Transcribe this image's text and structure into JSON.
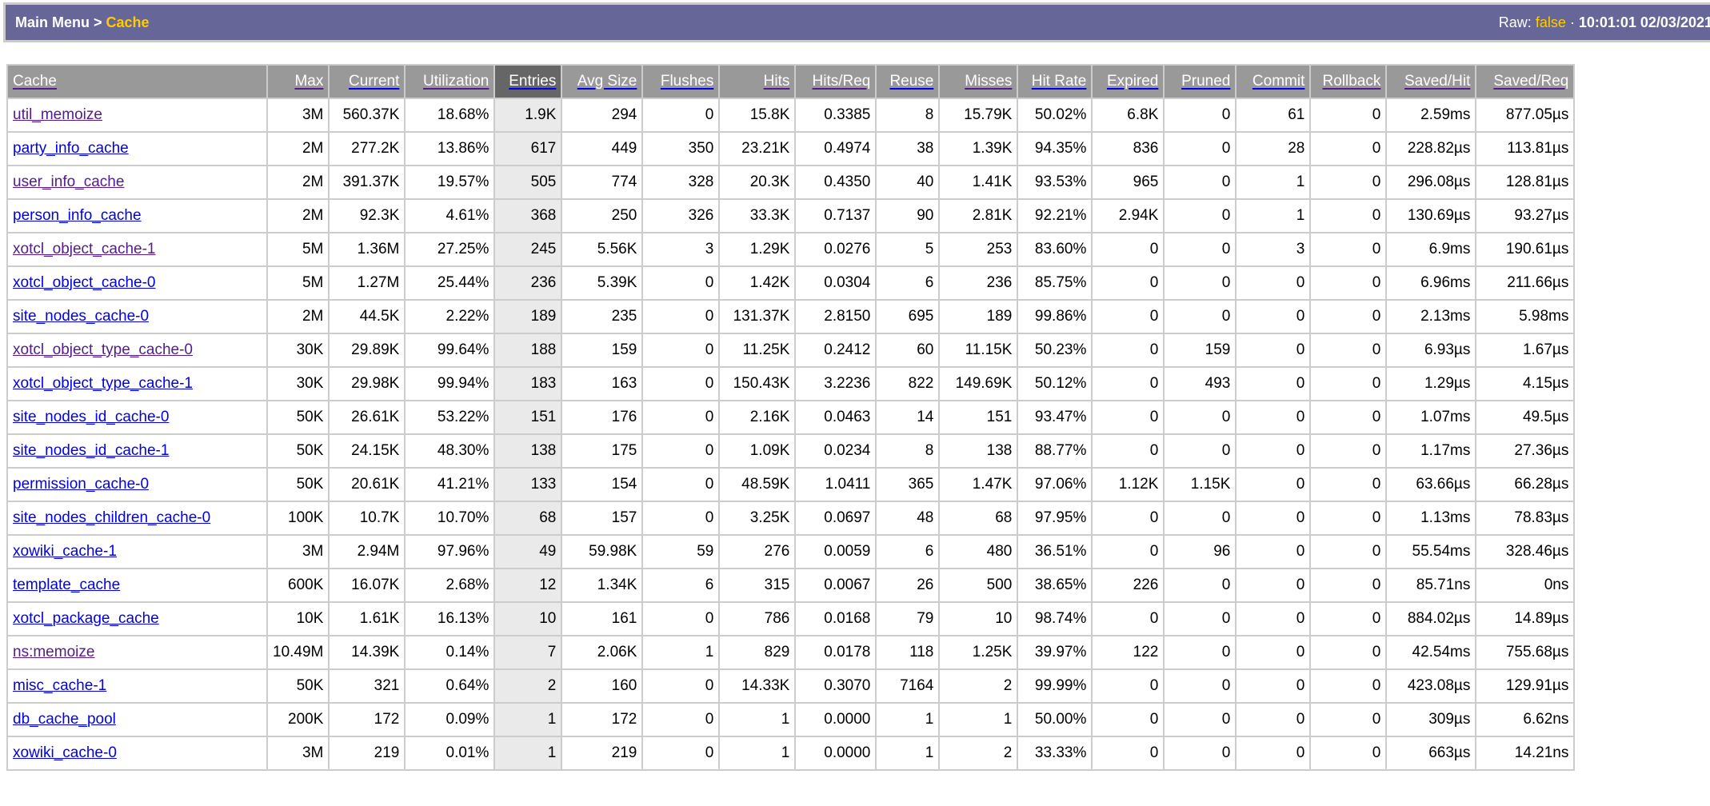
{
  "header": {
    "breadcrumb_root": "Main Menu",
    "breadcrumb_separator": ">",
    "breadcrumb_current": "Cache",
    "raw_label": "Raw:",
    "raw_value": "false",
    "separator": "·",
    "timestamp": "10:01:01 02/03/2021"
  },
  "colors": {
    "header_bar": "#666699",
    "highlight": "#ffcc00",
    "link": "#0000ee",
    "visited_link": "#551a8b",
    "table_header": "#999999",
    "sorted_header": "#666666",
    "sorted_cell": "#eaeaea"
  },
  "table": {
    "sorted_column": "Entries",
    "columns": [
      {
        "label": "Cache",
        "visited": true
      },
      {
        "label": "Max",
        "visited": true
      },
      {
        "label": "Current",
        "visited": false
      },
      {
        "label": "Utilization",
        "visited": true
      },
      {
        "label": "Entries",
        "visited": false
      },
      {
        "label": "Avg Size",
        "visited": false
      },
      {
        "label": "Flushes",
        "visited": false
      },
      {
        "label": "Hits",
        "visited": true
      },
      {
        "label": "Hits/Req",
        "visited": true
      },
      {
        "label": "Reuse",
        "visited": false
      },
      {
        "label": "Misses",
        "visited": true
      },
      {
        "label": "Hit Rate",
        "visited": false
      },
      {
        "label": "Expired",
        "visited": false
      },
      {
        "label": "Pruned",
        "visited": false
      },
      {
        "label": "Commit",
        "visited": false
      },
      {
        "label": "Rollback",
        "visited": true
      },
      {
        "label": "Saved/Hit",
        "visited": true
      },
      {
        "label": "Saved/Req",
        "visited": true
      }
    ],
    "rows": [
      {
        "visited": true,
        "cells": [
          "util_memoize",
          "3M",
          "560.37K",
          "18.68%",
          "1.9K",
          "294",
          "0",
          "15.8K",
          "0.3385",
          "8",
          "15.79K",
          "50.02%",
          "6.8K",
          "0",
          "61",
          "0",
          "2.59ms",
          "877.05µs"
        ]
      },
      {
        "visited": false,
        "cells": [
          "party_info_cache",
          "2M",
          "277.2K",
          "13.86%",
          "617",
          "449",
          "350",
          "23.21K",
          "0.4974",
          "38",
          "1.39K",
          "94.35%",
          "836",
          "0",
          "28",
          "0",
          "228.82µs",
          "113.81µs"
        ]
      },
      {
        "visited": true,
        "cells": [
          "user_info_cache",
          "2M",
          "391.37K",
          "19.57%",
          "505",
          "774",
          "328",
          "20.3K",
          "0.4350",
          "40",
          "1.41K",
          "93.53%",
          "965",
          "0",
          "1",
          "0",
          "296.08µs",
          "128.81µs"
        ]
      },
      {
        "visited": false,
        "cells": [
          "person_info_cache",
          "2M",
          "92.3K",
          "4.61%",
          "368",
          "250",
          "326",
          "33.3K",
          "0.7137",
          "90",
          "2.81K",
          "92.21%",
          "2.94K",
          "0",
          "1",
          "0",
          "130.69µs",
          "93.27µs"
        ]
      },
      {
        "visited": true,
        "cells": [
          "xotcl_object_cache-1",
          "5M",
          "1.36M",
          "27.25%",
          "245",
          "5.56K",
          "3",
          "1.29K",
          "0.0276",
          "5",
          "253",
          "83.60%",
          "0",
          "0",
          "3",
          "0",
          "6.9ms",
          "190.61µs"
        ]
      },
      {
        "visited": false,
        "cells": [
          "xotcl_object_cache-0",
          "5M",
          "1.27M",
          "25.44%",
          "236",
          "5.39K",
          "0",
          "1.42K",
          "0.0304",
          "6",
          "236",
          "85.75%",
          "0",
          "0",
          "0",
          "0",
          "6.96ms",
          "211.66µs"
        ]
      },
      {
        "visited": false,
        "cells": [
          "site_nodes_cache-0",
          "2M",
          "44.5K",
          "2.22%",
          "189",
          "235",
          "0",
          "131.37K",
          "2.8150",
          "695",
          "189",
          "99.86%",
          "0",
          "0",
          "0",
          "0",
          "2.13ms",
          "5.98ms"
        ]
      },
      {
        "visited": true,
        "cells": [
          "xotcl_object_type_cache-0",
          "30K",
          "29.89K",
          "99.64%",
          "188",
          "159",
          "0",
          "11.25K",
          "0.2412",
          "60",
          "11.15K",
          "50.23%",
          "0",
          "159",
          "0",
          "0",
          "6.93µs",
          "1.67µs"
        ]
      },
      {
        "visited": false,
        "cells": [
          "xotcl_object_type_cache-1",
          "30K",
          "29.98K",
          "99.94%",
          "183",
          "163",
          "0",
          "150.43K",
          "3.2236",
          "822",
          "149.69K",
          "50.12%",
          "0",
          "493",
          "0",
          "0",
          "1.29µs",
          "4.15µs"
        ]
      },
      {
        "visited": false,
        "cells": [
          "site_nodes_id_cache-0",
          "50K",
          "26.61K",
          "53.22%",
          "151",
          "176",
          "0",
          "2.16K",
          "0.0463",
          "14",
          "151",
          "93.47%",
          "0",
          "0",
          "0",
          "0",
          "1.07ms",
          "49.5µs"
        ]
      },
      {
        "visited": false,
        "cells": [
          "site_nodes_id_cache-1",
          "50K",
          "24.15K",
          "48.30%",
          "138",
          "175",
          "0",
          "1.09K",
          "0.0234",
          "8",
          "138",
          "88.77%",
          "0",
          "0",
          "0",
          "0",
          "1.17ms",
          "27.36µs"
        ]
      },
      {
        "visited": false,
        "cells": [
          "permission_cache-0",
          "50K",
          "20.61K",
          "41.21%",
          "133",
          "154",
          "0",
          "48.59K",
          "1.0411",
          "365",
          "1.47K",
          "97.06%",
          "1.12K",
          "1.15K",
          "0",
          "0",
          "63.66µs",
          "66.28µs"
        ]
      },
      {
        "visited": false,
        "cells": [
          "site_nodes_children_cache-0",
          "100K",
          "10.7K",
          "10.70%",
          "68",
          "157",
          "0",
          "3.25K",
          "0.0697",
          "48",
          "68",
          "97.95%",
          "0",
          "0",
          "0",
          "0",
          "1.13ms",
          "78.83µs"
        ]
      },
      {
        "visited": false,
        "cells": [
          "xowiki_cache-1",
          "3M",
          "2.94M",
          "97.96%",
          "49",
          "59.98K",
          "59",
          "276",
          "0.0059",
          "6",
          "480",
          "36.51%",
          "0",
          "96",
          "0",
          "0",
          "55.54ms",
          "328.46µs"
        ]
      },
      {
        "visited": false,
        "cells": [
          "template_cache",
          "600K",
          "16.07K",
          "2.68%",
          "12",
          "1.34K",
          "6",
          "315",
          "0.0067",
          "26",
          "500",
          "38.65%",
          "226",
          "0",
          "0",
          "0",
          "85.71ns",
          "0ns"
        ]
      },
      {
        "visited": false,
        "cells": [
          "xotcl_package_cache",
          "10K",
          "1.61K",
          "16.13%",
          "10",
          "161",
          "0",
          "786",
          "0.0168",
          "79",
          "10",
          "98.74%",
          "0",
          "0",
          "0",
          "0",
          "884.02µs",
          "14.89µs"
        ]
      },
      {
        "visited": true,
        "cells": [
          "ns:memoize",
          "10.49M",
          "14.39K",
          "0.14%",
          "7",
          "2.06K",
          "1",
          "829",
          "0.0178",
          "118",
          "1.25K",
          "39.97%",
          "122",
          "0",
          "0",
          "0",
          "42.54ms",
          "755.68µs"
        ]
      },
      {
        "visited": false,
        "cells": [
          "misc_cache-1",
          "50K",
          "321",
          "0.64%",
          "2",
          "160",
          "0",
          "14.33K",
          "0.3070",
          "7164",
          "2",
          "99.99%",
          "0",
          "0",
          "0",
          "0",
          "423.08µs",
          "129.91µs"
        ]
      },
      {
        "visited": false,
        "cells": [
          "db_cache_pool",
          "200K",
          "172",
          "0.09%",
          "1",
          "172",
          "0",
          "1",
          "0.0000",
          "1",
          "1",
          "50.00%",
          "0",
          "0",
          "0",
          "0",
          "309µs",
          "6.62ns"
        ]
      },
      {
        "visited": false,
        "cells": [
          "xowiki_cache-0",
          "3M",
          "219",
          "0.01%",
          "1",
          "219",
          "0",
          "1",
          "0.0000",
          "1",
          "2",
          "33.33%",
          "0",
          "0",
          "0",
          "0",
          "663µs",
          "14.21ns"
        ]
      }
    ]
  }
}
